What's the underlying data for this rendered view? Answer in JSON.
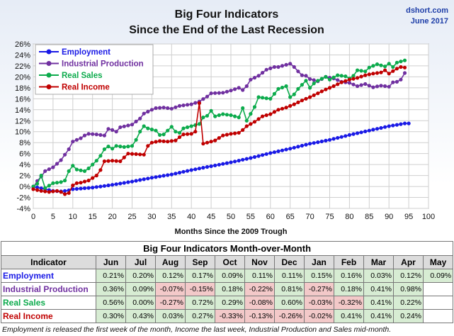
{
  "header": {
    "title_line1": "Big Four Indicators",
    "title_line2": "Since the End of the Last Recession",
    "source_line1": "dshort.com",
    "source_line2": "June 2017"
  },
  "chart_data": {
    "type": "line",
    "title": "Big Four Indicators Since the End of the Last Recession",
    "xlabel": "Months Since the 2009 Trough",
    "ylabel": "",
    "xlim": [
      0,
      100
    ],
    "ylim": [
      -4,
      26
    ],
    "x_ticks": [
      0,
      5,
      10,
      15,
      20,
      25,
      30,
      35,
      40,
      45,
      50,
      55,
      60,
      65,
      70,
      75,
      80,
      85,
      90,
      95,
      100
    ],
    "y_ticks": [
      -4,
      -2,
      0,
      2,
      4,
      6,
      8,
      10,
      12,
      14,
      16,
      18,
      20,
      22,
      24,
      26
    ],
    "grid": true,
    "legend_position": "top-left",
    "series": [
      {
        "name": "Employment",
        "color": "#1a1ae6",
        "keypoints": [
          [
            0,
            0
          ],
          [
            3,
            -0.5
          ],
          [
            5,
            -0.8
          ],
          [
            7,
            -0.9
          ],
          [
            9,
            -0.7
          ],
          [
            10,
            -0.5
          ],
          [
            15,
            -0.2
          ],
          [
            20,
            0.3
          ],
          [
            25,
            0.9
          ],
          [
            30,
            1.6
          ],
          [
            35,
            2.2
          ],
          [
            40,
            3.0
          ],
          [
            45,
            3.7
          ],
          [
            50,
            4.4
          ],
          [
            55,
            5.2
          ],
          [
            60,
            6.1
          ],
          [
            65,
            6.9
          ],
          [
            70,
            7.8
          ],
          [
            75,
            8.5
          ],
          [
            80,
            9.4
          ],
          [
            85,
            10.2
          ],
          [
            90,
            11.0
          ],
          [
            94,
            11.5
          ],
          [
            95,
            11.5
          ]
        ]
      },
      {
        "name": "Industrial Production",
        "color": "#7030a0",
        "keypoints": [
          [
            0,
            -0.2
          ],
          [
            1,
            1.0
          ],
          [
            2,
            1.8
          ],
          [
            3,
            2.8
          ],
          [
            5,
            3.5
          ],
          [
            7,
            4.8
          ],
          [
            8,
            5.8
          ],
          [
            9,
            6.8
          ],
          [
            10,
            8.2
          ],
          [
            11,
            8.5
          ],
          [
            12,
            8.8
          ],
          [
            13,
            9.3
          ],
          [
            14,
            9.6
          ],
          [
            16,
            9.5
          ],
          [
            18,
            9.3
          ],
          [
            19,
            10.5
          ],
          [
            20,
            10.3
          ],
          [
            21,
            10.0
          ],
          [
            22,
            10.8
          ],
          [
            25,
            11.3
          ],
          [
            27,
            12.4
          ],
          [
            28,
            13.3
          ],
          [
            30,
            14.0
          ],
          [
            31,
            14.3
          ],
          [
            33,
            14.4
          ],
          [
            35,
            14.2
          ],
          [
            37,
            14.7
          ],
          [
            40,
            15.0
          ],
          [
            42,
            15.5
          ],
          [
            44,
            16.4
          ],
          [
            45,
            17.0
          ],
          [
            48,
            17.1
          ],
          [
            50,
            17.5
          ],
          [
            52,
            18.0
          ],
          [
            53,
            17.6
          ],
          [
            54,
            18.3
          ],
          [
            55,
            19.5
          ],
          [
            57,
            20.2
          ],
          [
            59,
            21.3
          ],
          [
            61,
            21.8
          ],
          [
            62,
            21.8
          ],
          [
            64,
            22.2
          ],
          [
            65,
            22.4
          ],
          [
            66,
            21.8
          ],
          [
            67,
            21.0
          ],
          [
            68,
            20.3
          ],
          [
            69,
            20.2
          ],
          [
            70,
            19.6
          ],
          [
            72,
            19.2
          ],
          [
            74,
            20.0
          ],
          [
            76,
            19.7
          ],
          [
            78,
            19.1
          ],
          [
            80,
            18.9
          ],
          [
            82,
            18.3
          ],
          [
            84,
            18.7
          ],
          [
            86,
            18.1
          ],
          [
            88,
            18.4
          ],
          [
            90,
            18.2
          ],
          [
            91,
            19.0
          ],
          [
            92,
            19.1
          ],
          [
            93,
            19.5
          ],
          [
            94,
            20.7
          ]
        ]
      },
      {
        "name": "Real Sales",
        "color": "#0cab4c",
        "keypoints": [
          [
            0,
            0
          ],
          [
            1,
            0.5
          ],
          [
            2,
            2.0
          ],
          [
            3,
            -0.3
          ],
          [
            5,
            0.6
          ],
          [
            7,
            0.8
          ],
          [
            8,
            1.1
          ],
          [
            9,
            2.8
          ],
          [
            10,
            3.8
          ],
          [
            11,
            3.1
          ],
          [
            13,
            2.8
          ],
          [
            14,
            3.3
          ],
          [
            15,
            4.0
          ],
          [
            16,
            4.7
          ],
          [
            17,
            5.6
          ],
          [
            18,
            6.8
          ],
          [
            19,
            7.3
          ],
          [
            20,
            6.9
          ],
          [
            21,
            7.4
          ],
          [
            23,
            7.2
          ],
          [
            25,
            7.4
          ],
          [
            26,
            8.5
          ],
          [
            27,
            10.0
          ],
          [
            28,
            11.0
          ],
          [
            29,
            10.6
          ],
          [
            31,
            10.2
          ],
          [
            32,
            9.4
          ],
          [
            33,
            9.5
          ],
          [
            34,
            10.2
          ],
          [
            35,
            10.9
          ],
          [
            36,
            10.0
          ],
          [
            37,
            9.8
          ],
          [
            38,
            10.6
          ],
          [
            40,
            11.0
          ],
          [
            42,
            11.4
          ],
          [
            43,
            12.6
          ],
          [
            44,
            12.9
          ],
          [
            45,
            13.8
          ],
          [
            46,
            12.8
          ],
          [
            48,
            13.2
          ],
          [
            50,
            13.0
          ],
          [
            52,
            12.6
          ],
          [
            53,
            14.3
          ],
          [
            54,
            12.0
          ],
          [
            56,
            14.5
          ],
          [
            57,
            16.3
          ],
          [
            60,
            16.0
          ],
          [
            62,
            17.8
          ],
          [
            64,
            18.3
          ],
          [
            65,
            16.3
          ],
          [
            66,
            16.8
          ],
          [
            67,
            17.8
          ],
          [
            69,
            19.3
          ],
          [
            70,
            18.0
          ],
          [
            71,
            18.8
          ],
          [
            72,
            19.3
          ],
          [
            74,
            20.0
          ],
          [
            75,
            19.5
          ],
          [
            77,
            20.3
          ],
          [
            79,
            20.1
          ],
          [
            80,
            19.7
          ],
          [
            81,
            20.2
          ],
          [
            82,
            21.2
          ],
          [
            84,
            21.0
          ],
          [
            85,
            21.7
          ],
          [
            87,
            22.3
          ],
          [
            89,
            21.9
          ],
          [
            90,
            22.4
          ],
          [
            91,
            21.8
          ],
          [
            92,
            22.6
          ],
          [
            94,
            23.0
          ]
        ]
      },
      {
        "name": "Real Income",
        "color": "#c00000",
        "keypoints": [
          [
            0,
            -0.5
          ],
          [
            2,
            -0.8
          ],
          [
            4,
            -1.0
          ],
          [
            6,
            -0.8
          ],
          [
            7,
            -1.0
          ],
          [
            8,
            -1.4
          ],
          [
            9,
            -1.2
          ],
          [
            10,
            0.2
          ],
          [
            11,
            0.6
          ],
          [
            12,
            0.7
          ],
          [
            14,
            1.1
          ],
          [
            16,
            2.0
          ],
          [
            17,
            3.0
          ],
          [
            18,
            4.6
          ],
          [
            20,
            4.7
          ],
          [
            22,
            4.6
          ],
          [
            23,
            5.3
          ],
          [
            24,
            6.0
          ],
          [
            26,
            5.9
          ],
          [
            28,
            5.8
          ],
          [
            29,
            7.4
          ],
          [
            30,
            8.0
          ],
          [
            32,
            8.3
          ],
          [
            34,
            8.2
          ],
          [
            36,
            8.4
          ],
          [
            37,
            9.0
          ],
          [
            38,
            9.5
          ],
          [
            40,
            9.6
          ],
          [
            41,
            10.0
          ],
          [
            42,
            15.2
          ],
          [
            43,
            7.8
          ],
          [
            45,
            8.2
          ],
          [
            46,
            8.4
          ],
          [
            48,
            9.3
          ],
          [
            50,
            9.6
          ],
          [
            52,
            9.8
          ],
          [
            53,
            10.3
          ],
          [
            54,
            11.0
          ],
          [
            56,
            11.8
          ],
          [
            58,
            12.8
          ],
          [
            60,
            13.2
          ],
          [
            62,
            14.0
          ],
          [
            64,
            14.4
          ],
          [
            66,
            15.0
          ],
          [
            68,
            15.7
          ],
          [
            70,
            16.3
          ],
          [
            72,
            17.0
          ],
          [
            74,
            17.7
          ],
          [
            76,
            18.3
          ],
          [
            78,
            19.0
          ],
          [
            80,
            19.5
          ],
          [
            82,
            19.8
          ],
          [
            84,
            20.3
          ],
          [
            86,
            20.6
          ],
          [
            88,
            20.8
          ],
          [
            89,
            21.2
          ],
          [
            90,
            20.6
          ],
          [
            92,
            21.5
          ],
          [
            93,
            21.8
          ],
          [
            94,
            21.7
          ]
        ]
      }
    ]
  },
  "table": {
    "title": "Big Four Indicators Month-over-Month",
    "header_label": "Indicator",
    "months": [
      "Jun",
      "Jul",
      "Aug",
      "Sep",
      "Oct",
      "Nov",
      "Dec",
      "Jan",
      "Feb",
      "Mar",
      "Apr",
      "May"
    ],
    "rows": [
      {
        "name": "Employment",
        "color": "#1a1ae6",
        "values": [
          "0.21%",
          "0.20%",
          "0.12%",
          "0.17%",
          "0.09%",
          "0.11%",
          "0.11%",
          "0.15%",
          "0.16%",
          "0.03%",
          "0.12%",
          "0.09%"
        ]
      },
      {
        "name": "Industrial Production",
        "color": "#7030a0",
        "values": [
          "0.36%",
          "0.09%",
          "-0.07%",
          "-0.15%",
          "0.18%",
          "-0.22%",
          "0.81%",
          "-0.27%",
          "0.18%",
          "0.41%",
          "0.98%",
          ""
        ]
      },
      {
        "name": "Real Sales",
        "color": "#0cab4c",
        "values": [
          "0.56%",
          "0.00%",
          "-0.27%",
          "0.72%",
          "0.29%",
          "-0.08%",
          "0.60%",
          "-0.03%",
          "-0.32%",
          "0.41%",
          "0.22%",
          ""
        ]
      },
      {
        "name": "Real Income",
        "color": "#c00000",
        "values": [
          "0.30%",
          "0.43%",
          "0.03%",
          "0.27%",
          "-0.33%",
          "-0.13%",
          "-0.26%",
          "-0.02%",
          "0.41%",
          "0.41%",
          "0.24%",
          ""
        ]
      }
    ]
  },
  "footnote": "Employment is released the first week of the month, Income the last week, Industrial Production and Sales mid-month."
}
